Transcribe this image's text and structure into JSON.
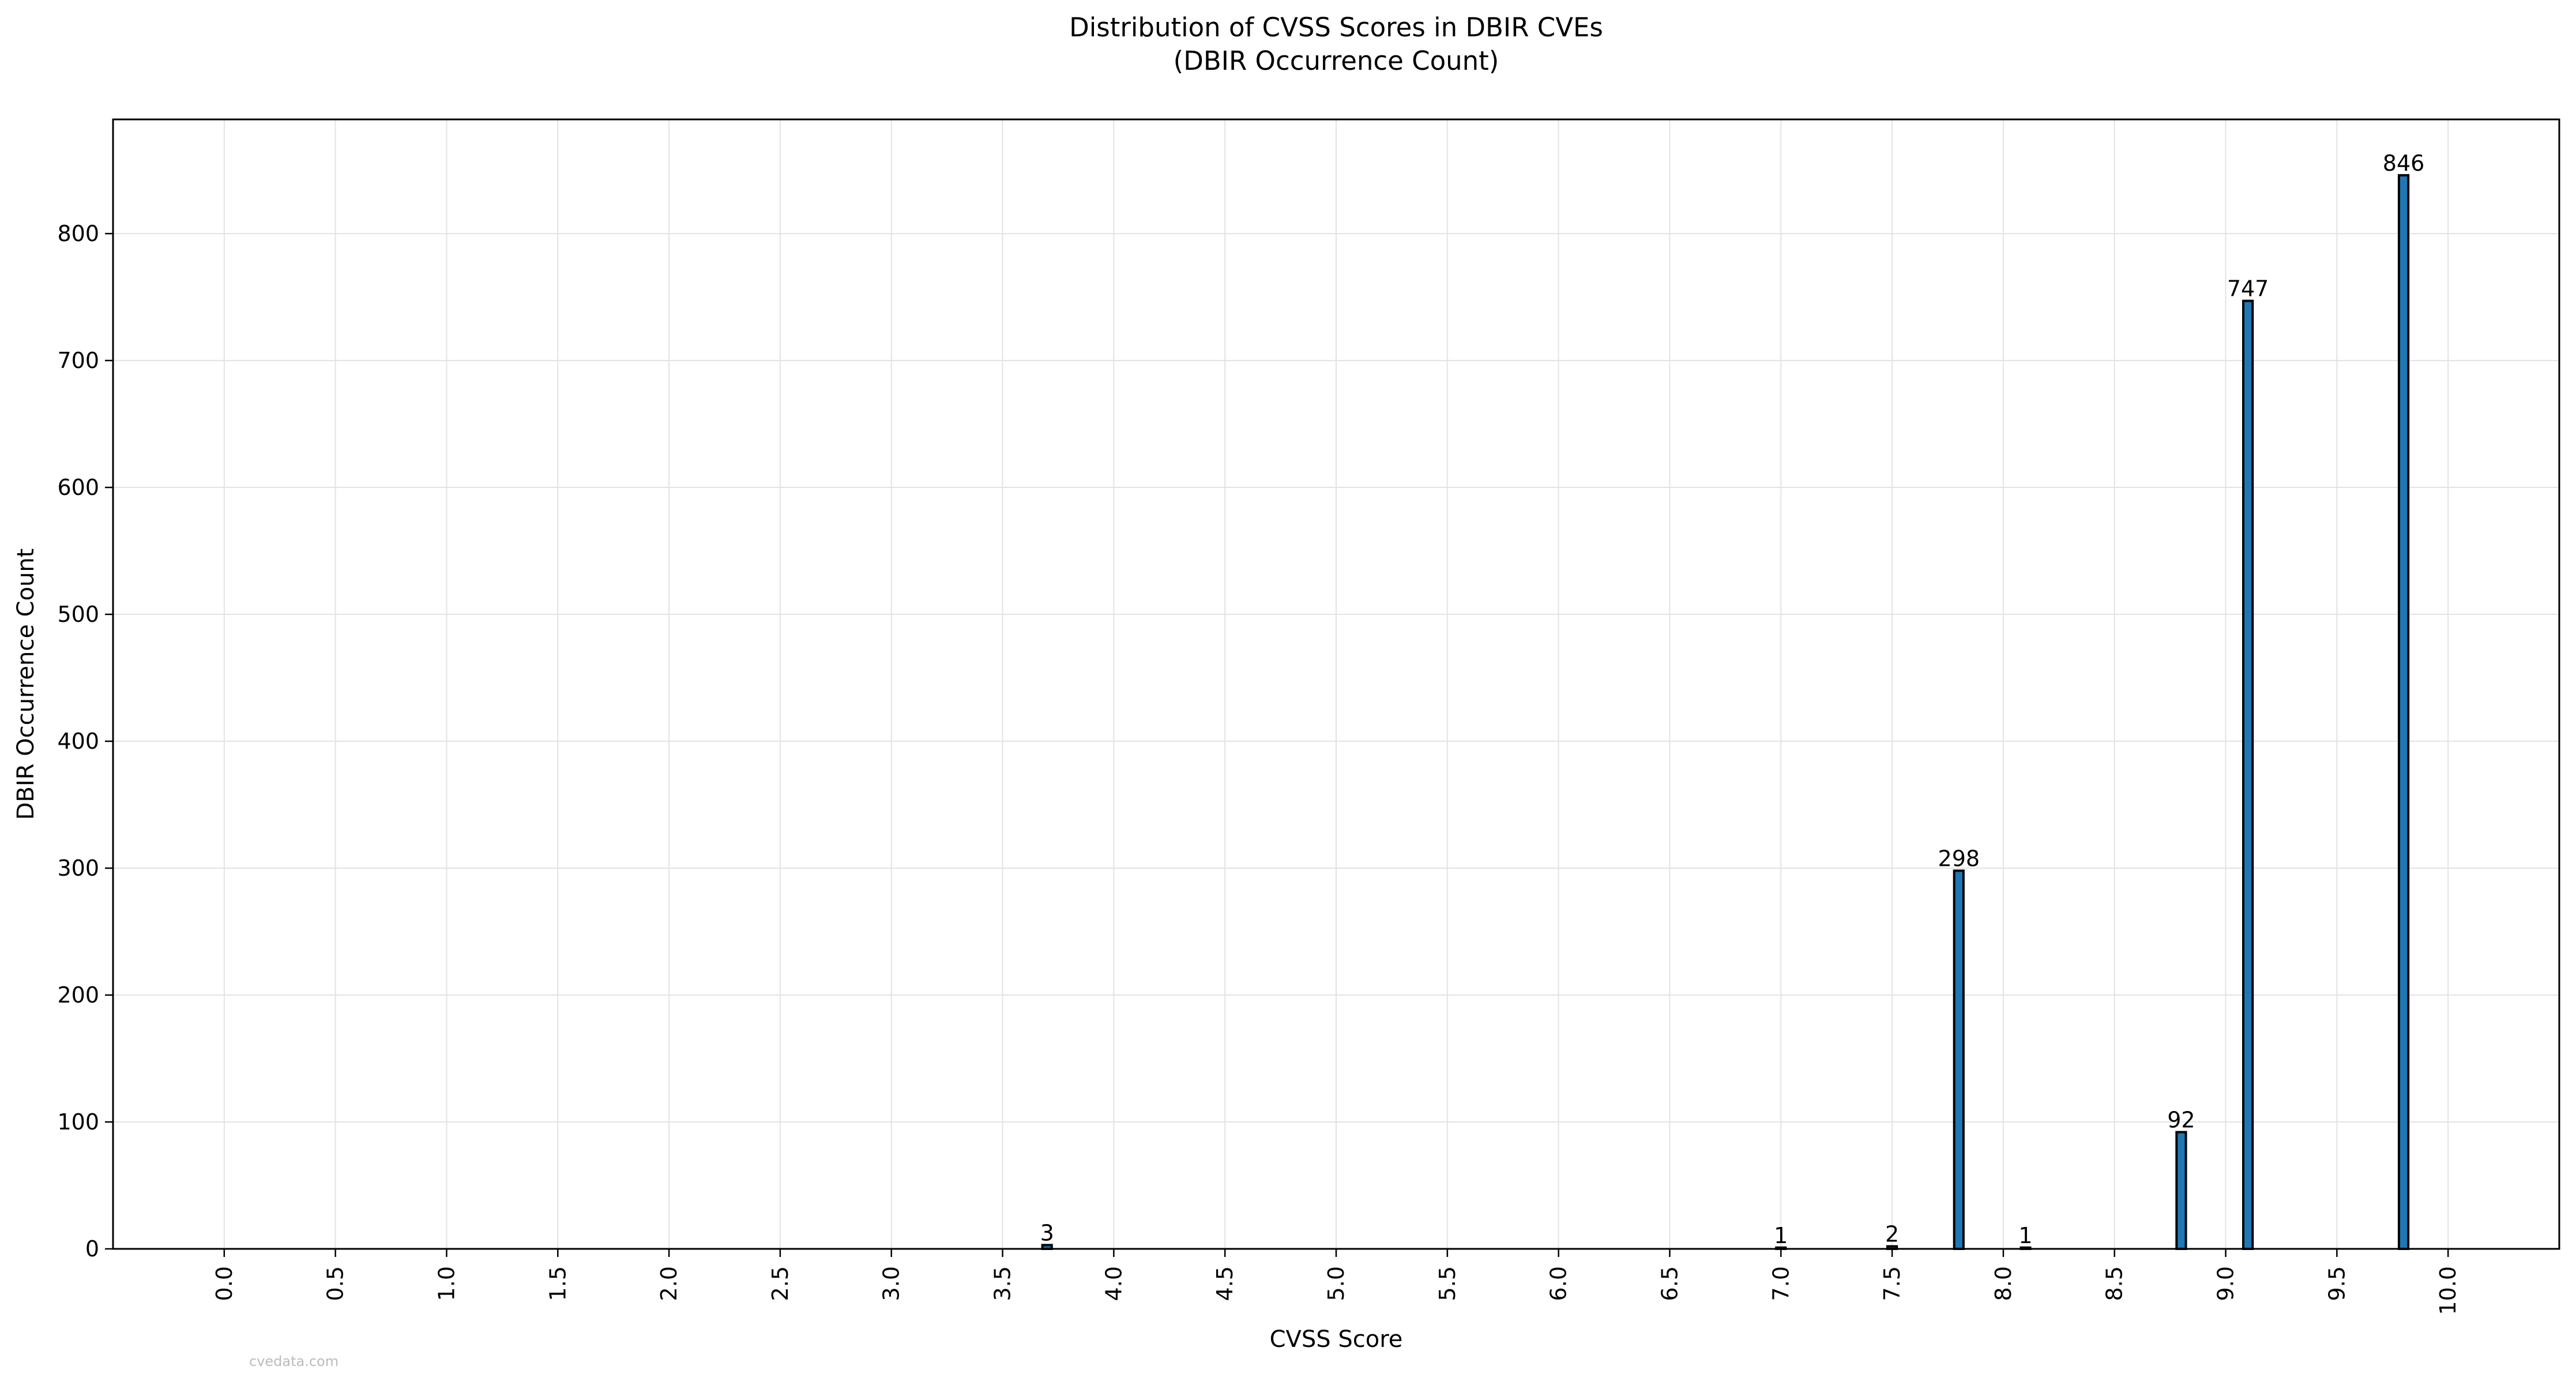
{
  "chart_data": {
    "type": "bar",
    "title": "Distribution of CVSS Scores in DBIR CVEs",
    "subtitle": "(DBIR Occurrence Count)",
    "xlabel": "CVSS Score",
    "ylabel": "DBIR Occurrence Count",
    "xlim": [
      -0.5,
      10.5
    ],
    "ylim": [
      0,
      890
    ],
    "xticks": [
      0.0,
      0.5,
      1.0,
      1.5,
      2.0,
      2.5,
      3.0,
      3.5,
      4.0,
      4.5,
      5.0,
      5.5,
      6.0,
      6.5,
      7.0,
      7.5,
      8.0,
      8.5,
      9.0,
      9.5,
      10.0
    ],
    "xtick_labels": [
      "0.0",
      "0.5",
      "1.0",
      "1.5",
      "2.0",
      "2.5",
      "3.0",
      "3.5",
      "4.0",
      "4.5",
      "5.0",
      "5.5",
      "6.0",
      "6.5",
      "7.0",
      "7.5",
      "8.0",
      "8.5",
      "9.0",
      "9.5",
      "10.0"
    ],
    "yticks": [
      0,
      100,
      200,
      300,
      400,
      500,
      600,
      700,
      800
    ],
    "ytick_labels": [
      "0",
      "100",
      "200",
      "300",
      "400",
      "500",
      "600",
      "700",
      "800"
    ],
    "bar_width": 0.1,
    "x": [
      3.7,
      7.0,
      7.5,
      7.8,
      8.1,
      8.8,
      9.1,
      9.8
    ],
    "values": [
      3,
      1,
      2,
      298,
      1,
      92,
      747,
      846
    ],
    "data_labels": [
      "3",
      "1",
      "2",
      "298",
      "1",
      "92",
      "747",
      "846"
    ],
    "grid": true,
    "bar_color": "#1f77b4",
    "edge_color": "#000000"
  },
  "watermark": "cvedata.com"
}
